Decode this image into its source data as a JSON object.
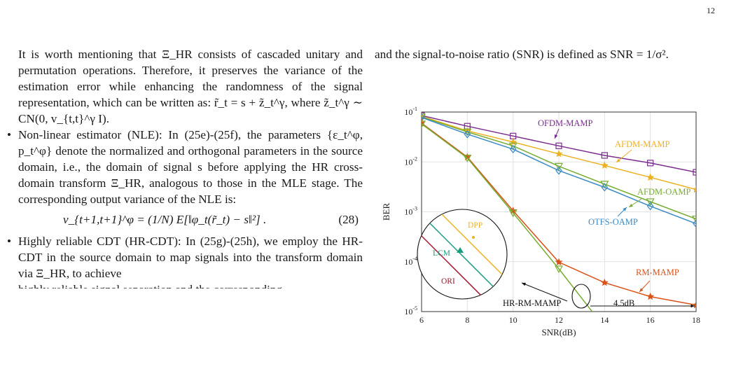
{
  "page_number": "12",
  "left_column": {
    "para1": "It is worth mentioning that Ξ_HR consists of cascaded unitary and permutation operations. Therefore, it preserves the variance of the estimation error while enhancing the randomness of the signal representation, which can be written as: r̃_t = s + z̃_t^γ, where z̃_t^γ ∼ CN(0, v_{t,t}^γ I).",
    "bullet_nle": "Non-linear estimator (NLE): In (25e)-(25f), the parameters {ε_t^φ, p_t^φ} denote the normalized and orthogonal parameters in the source domain, i.e., the domain of signal s before applying the HR cross-domain transform Ξ_HR, analogous to those in the MLE stage. The corresponding output variance of the NLE is:",
    "equation": "v_{t+1,t+1}^φ = (1/N) E[‖φ_t(r̃_t) − s‖²] .",
    "equation_number": "(28)",
    "bullet_hrcdt": "Highly reliable CDT (HR-CDT): In (25g)-(25h), we employ the HR-CDT in the source domain to map signals into the transform domain via Ξ_HR, to achieve",
    "bullet_hrcdt_cont": "highly reliable signal separation and the corresponding"
  },
  "right_column": {
    "para1": "and the signal-to-noise ratio (SNR) is defined as SNR = 1/σ²."
  },
  "chart_data": {
    "type": "line",
    "xlabel": "SNR(dB)",
    "ylabel": "BER",
    "xlim": [
      6,
      18
    ],
    "ylim": [
      1e-05,
      0.1
    ],
    "yscale": "log",
    "x_ticks": [
      6,
      8,
      10,
      12,
      14,
      16,
      18
    ],
    "y_ticks": [
      "10-1",
      "10-2",
      "10-3",
      "10-4",
      "10-5"
    ],
    "grid": true,
    "series": [
      {
        "name": "OFDM-MAMP",
        "color": "#7b2d8e",
        "marker": "square",
        "x": [
          6,
          8,
          10,
          12,
          14,
          16,
          18
        ],
        "y": [
          0.085,
          0.052,
          0.033,
          0.021,
          0.0135,
          0.0095,
          0.0062
        ]
      },
      {
        "name": "AFDM-MAMP",
        "color": "#edb120",
        "marker": "star",
        "x": [
          6,
          8,
          10,
          12,
          14,
          16,
          18
        ],
        "y": [
          0.082,
          0.042,
          0.025,
          0.0145,
          0.0085,
          0.0049,
          0.0028
        ]
      },
      {
        "name": "AFDM-OAMP",
        "color": "#77ac30",
        "marker": "triangle-down",
        "x": [
          6,
          8,
          10,
          12,
          14,
          16,
          18
        ],
        "y": [
          0.08,
          0.04,
          0.021,
          0.0082,
          0.0036,
          0.0016,
          0.00072
        ]
      },
      {
        "name": "OTFS-OAMP",
        "color": "#3a8ac4",
        "marker": "diamond",
        "x": [
          6,
          8,
          10,
          12,
          14,
          16,
          18
        ],
        "y": [
          0.078,
          0.036,
          0.018,
          0.0067,
          0.0031,
          0.0013,
          0.00058
        ]
      },
      {
        "name": "RM-MAMP",
        "color": "#d95319",
        "marker": "star",
        "x": [
          6,
          8,
          10,
          12,
          14,
          16,
          18
        ],
        "y": [
          0.06,
          0.0125,
          0.00105,
          9.8e-05,
          3.8e-05,
          2e-05,
          1.35e-05
        ]
      },
      {
        "name": "HR-RM-MAMP",
        "color": "#77ac30",
        "marker": "triangle-down",
        "x": [
          6,
          8,
          10,
          12,
          14
        ],
        "y": [
          0.058,
          0.012,
          0.00095,
          7.2e-05,
          4.8e-06
        ]
      }
    ],
    "inset": {
      "labels": [
        "DPP",
        "LCM",
        "ORI"
      ],
      "colors": [
        "#edb120",
        "#179c7d",
        "#a2142f"
      ]
    },
    "annotations": [
      {
        "text": "OFDM-MAMP"
      },
      {
        "text": "AFDM-MAMP"
      },
      {
        "text": "AFDM-OAMP"
      },
      {
        "text": "OTFS-OAMP"
      },
      {
        "text": "RM-MAMP"
      },
      {
        "text": "HR-RM-MAMP"
      },
      {
        "text": "4.5dB"
      }
    ]
  }
}
